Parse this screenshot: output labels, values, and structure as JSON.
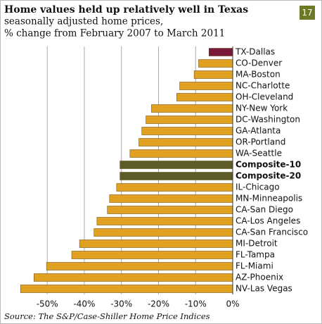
{
  "chart_data": {
    "type": "barh",
    "title": "Home values held up relatively well in Texas",
    "subtitle": [
      "seasonally adjusted home prices,",
      "% change from February 2007 to March 2011"
    ],
    "badge": "17",
    "source": "Source: The S&P/Case-Shiller Home Price Indices",
    "categories": [
      "TX-Dallas",
      "CO-Denver",
      "MA-Boston",
      "NC-Charlotte",
      "OH-Cleveland",
      "NY-New York",
      "DC-Washington",
      "GA-Atlanta",
      "OR-Portland",
      "WA-Seattle",
      "Composite-10",
      "Composite-20",
      "IL-Chicago",
      "MN-Minneapolis",
      "CA-San Diego",
      "CA-Los Angeles",
      "CA-San Francisco",
      "MI-Detroit",
      "FL-Tampa",
      "FL-Miami",
      "AZ-Phoenix",
      "NV-Las Vegas"
    ],
    "values": [
      -6.4,
      -9.2,
      -10.4,
      -14.3,
      -15.1,
      -21.9,
      -23.4,
      -24.5,
      -25.3,
      -27.7,
      -30.4,
      -30.4,
      -31.3,
      -33.2,
      -33.8,
      -36.6,
      -37.4,
      -41.3,
      -43.4,
      -50.2,
      -53.6,
      -57.2
    ],
    "colors": [
      "#7a1838",
      "#e0a020",
      "#e0a020",
      "#e0a020",
      "#e0a020",
      "#e0a020",
      "#e0a020",
      "#e0a020",
      "#e0a020",
      "#e0a020",
      "#5c5c26",
      "#5c5c26",
      "#e0a020",
      "#e0a020",
      "#e0a020",
      "#e0a020",
      "#e0a020",
      "#e0a020",
      "#e0a020",
      "#e0a020",
      "#e0a020",
      "#e0a020"
    ],
    "bold_indices": [
      10,
      11
    ],
    "xlim": [
      -58,
      0
    ],
    "xticks": [
      {
        "value": -50,
        "label": "-50%"
      },
      {
        "value": -40,
        "label": "-40%"
      },
      {
        "value": -30,
        "label": "-30%"
      },
      {
        "value": -20,
        "label": "-20%"
      },
      {
        "value": -10,
        "label": "-10%"
      },
      {
        "value": 0,
        "label": "0%"
      }
    ],
    "grid": true
  }
}
